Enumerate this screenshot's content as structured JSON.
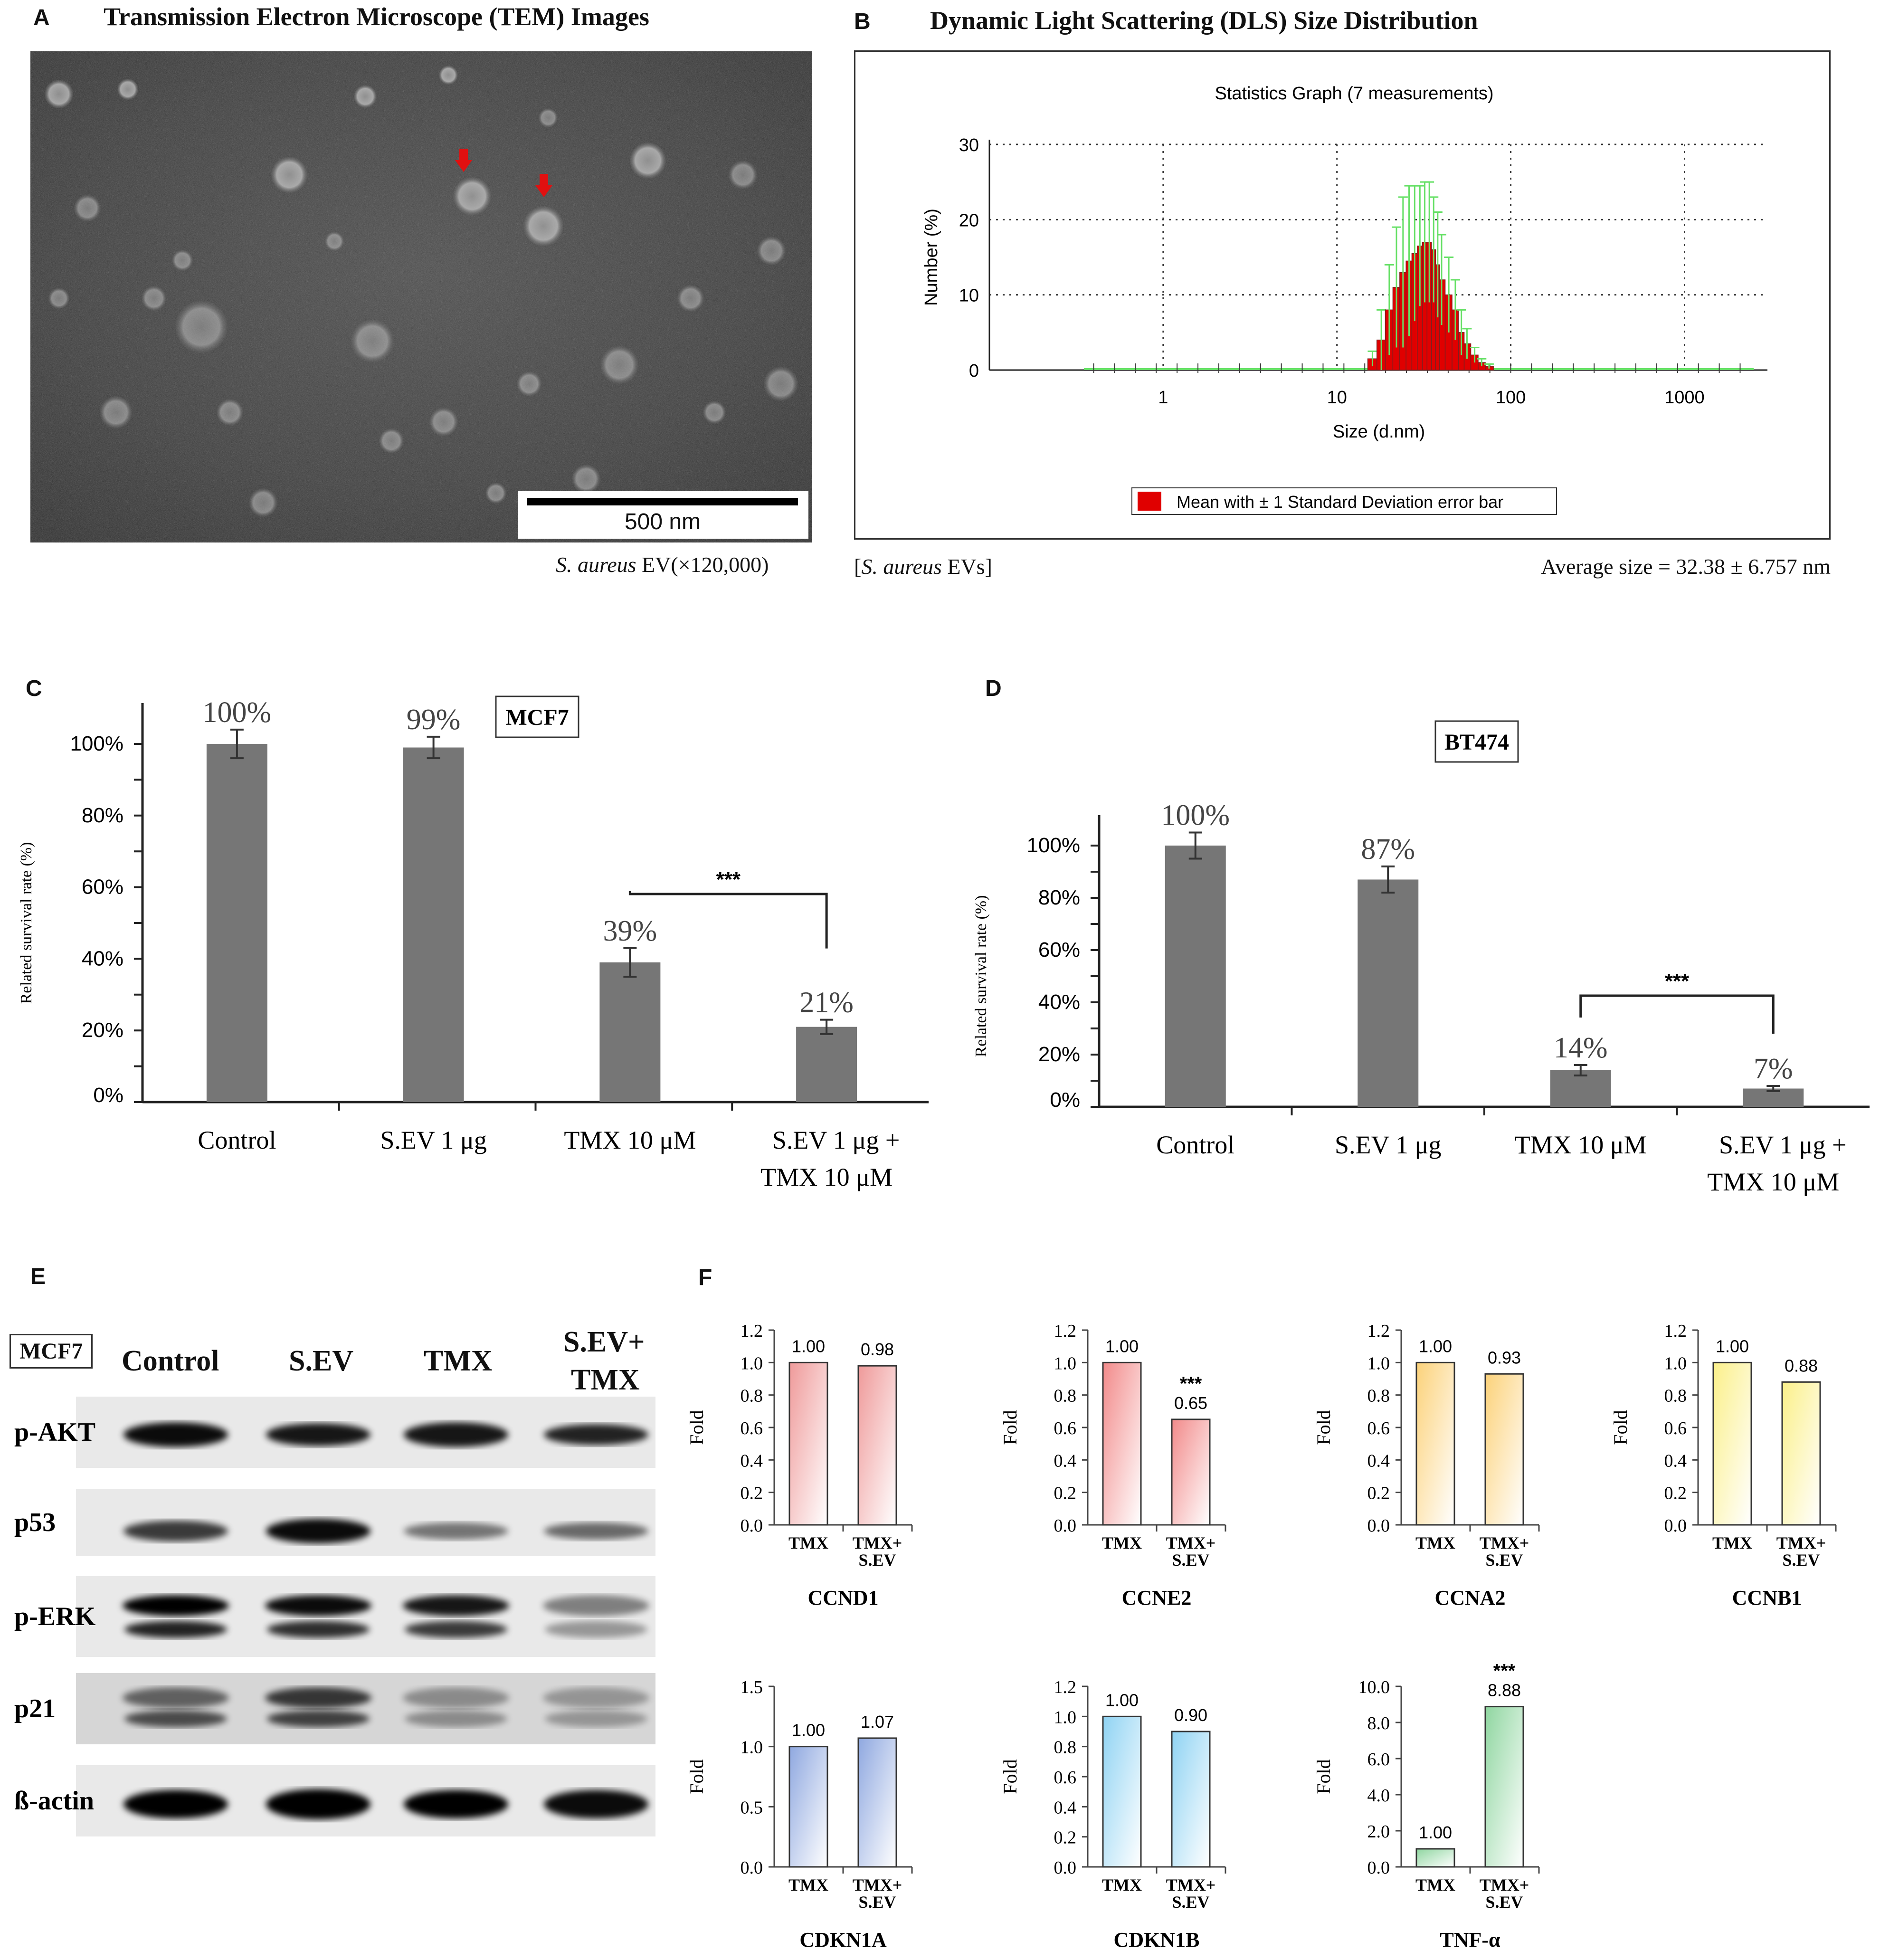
{
  "panels": {
    "a": {
      "letter": "A",
      "title": "Transmission Electron Microscope (TEM) Images",
      "scale_bar": "500 nm",
      "caption_species": "S. aureus",
      "caption_rest": " EV(×120,000)"
    },
    "b": {
      "letter": "B",
      "title": "Dynamic Light Scattering (DLS) Size Distribution",
      "caption_left_species": "S. aureus",
      "caption_left_pre": "[",
      "caption_left_post": " EVs]",
      "caption_right": "Average size = 32.38 ± 6.757 nm"
    },
    "c": {
      "letter": "C"
    },
    "d": {
      "letter": "D"
    },
    "e": {
      "letter": "E"
    },
    "f": {
      "letter": "F"
    }
  },
  "western": {
    "cell_line": "MCF7",
    "columns": [
      "Control",
      "S.EV",
      "TMX",
      "S.EV+",
      "TMX"
    ],
    "rows": [
      "p-AKT",
      "p53",
      "p-ERK",
      "p21",
      "ß-actin"
    ]
  },
  "colors": {
    "bar_gray": "#767676",
    "dls_red": "#e00000",
    "dls_green": "#66e066",
    "ccnd1": "#ef9a9a",
    "ccne2": "#f28a8a",
    "ccna2": "#fcd27a",
    "ccnb1": "#fbf08a",
    "cdkn1a": "#8fa8e0",
    "cdkn1b": "#8fd3f3",
    "tnfa": "#8fd6a0"
  },
  "chart_data": [
    {
      "id": "dls",
      "type": "bar",
      "title": "Statistics Graph (7 measurements)",
      "xlabel": "Size (d.nm)",
      "ylabel": "Number (%)",
      "x_scale": "log",
      "xlim": [
        0.1,
        3000
      ],
      "ylim": [
        0,
        30
      ],
      "x_ticks": [
        "1",
        "10",
        "100",
        "1000",
        "10000"
      ],
      "y_ticks": [
        "0",
        "10",
        "20",
        "30"
      ],
      "grid": true,
      "legend": "Mean with ± 1 Standard Deviation error bar",
      "legend_position": "bottom",
      "x": [
        16,
        18,
        20,
        22,
        24,
        26,
        28,
        30,
        32,
        34,
        36,
        38,
        40,
        44,
        48,
        52,
        56,
        62,
        68,
        75
      ],
      "values": [
        1.5,
        4,
        8,
        11,
        13,
        14.5,
        15.5,
        16.5,
        17,
        17,
        16,
        14,
        12,
        10,
        8,
        5,
        3.5,
        2,
        1,
        0.5
      ],
      "errors": [
        1,
        4,
        6,
        8,
        10,
        10,
        9,
        8,
        8,
        8,
        7,
        7,
        6,
        5,
        4,
        3,
        2,
        1,
        0.5,
        0.3
      ]
    },
    {
      "id": "mcf7",
      "type": "bar",
      "label": "MCF7",
      "ylabel": "Related survival rate (%)",
      "ylim": [
        0,
        100
      ],
      "y_ticks": [
        "0%",
        "20%",
        "40%",
        "60%",
        "80%",
        "100%"
      ],
      "categories": [
        [
          "Control"
        ],
        [
          "S.EV 1 μg"
        ],
        [
          "TMX 10 μM"
        ],
        [
          "S.EV 1 μg +",
          "TMX 10 μM"
        ]
      ],
      "values": [
        100,
        99,
        39,
        21
      ],
      "errors": [
        4,
        3,
        4,
        2
      ],
      "data_labels": [
        "100%",
        "99%",
        "39%",
        "21%"
      ],
      "significance": {
        "between": [
          2,
          3
        ],
        "label": "***"
      }
    },
    {
      "id": "bt474",
      "type": "bar",
      "label": "BT474",
      "ylabel": "Related survival rate (%)",
      "ylim": [
        0,
        100
      ],
      "y_ticks": [
        "0%",
        "20%",
        "40%",
        "60%",
        "80%",
        "100%"
      ],
      "categories": [
        [
          "Control"
        ],
        [
          "S.EV 1 μg"
        ],
        [
          "TMX 10 μM"
        ],
        [
          "S.EV 1 μg +",
          "TMX 10 μM"
        ]
      ],
      "values": [
        100,
        87,
        14,
        7
      ],
      "errors": [
        5,
        5,
        2,
        1
      ],
      "data_labels": [
        "100%",
        "87%",
        "14%",
        "7%"
      ],
      "significance": {
        "between": [
          2,
          3
        ],
        "label": "***"
      }
    },
    {
      "id": "ccnd1",
      "type": "bar",
      "title": "CCND1",
      "ylabel": "Fold",
      "ylim": [
        0,
        1.2
      ],
      "y_ticks": [
        "0.0",
        "0.2",
        "0.4",
        "0.6",
        "0.8",
        "1.0",
        "1.2"
      ],
      "categories": [
        [
          "TMX"
        ],
        [
          "TMX+",
          "S.EV"
        ]
      ],
      "values": [
        1.0,
        0.98
      ],
      "data_labels": [
        "1.00",
        "0.98"
      ],
      "significance": ""
    },
    {
      "id": "ccne2",
      "type": "bar",
      "title": "CCNE2",
      "ylabel": "Fold",
      "ylim": [
        0,
        1.2
      ],
      "y_ticks": [
        "0.0",
        "0.2",
        "0.4",
        "0.6",
        "0.8",
        "1.0",
        "1.2"
      ],
      "categories": [
        [
          "TMX"
        ],
        [
          "TMX+",
          "S.EV"
        ]
      ],
      "values": [
        1.0,
        0.65
      ],
      "data_labels": [
        "1.00",
        "0.65"
      ],
      "significance": "***"
    },
    {
      "id": "ccna2",
      "type": "bar",
      "title": "CCNA2",
      "ylabel": "Fold",
      "ylim": [
        0,
        1.2
      ],
      "y_ticks": [
        "0.0",
        "0.2",
        "0.4",
        "0.6",
        "0.8",
        "1.0",
        "1.2"
      ],
      "categories": [
        [
          "TMX"
        ],
        [
          "TMX+",
          "S.EV"
        ]
      ],
      "values": [
        1.0,
        0.93
      ],
      "data_labels": [
        "1.00",
        "0.93"
      ],
      "significance": ""
    },
    {
      "id": "ccnb1",
      "type": "bar",
      "title": "CCNB1",
      "ylabel": "Fold",
      "ylim": [
        0,
        1.2
      ],
      "y_ticks": [
        "0.0",
        "0.2",
        "0.4",
        "0.6",
        "0.8",
        "1.0",
        "1.2"
      ],
      "categories": [
        [
          "TMX"
        ],
        [
          "TMX+",
          "S.EV"
        ]
      ],
      "values": [
        1.0,
        0.88
      ],
      "data_labels": [
        "1.00",
        "0.88"
      ],
      "significance": ""
    },
    {
      "id": "cdkn1a",
      "type": "bar",
      "title": "CDKN1A",
      "ylabel": "Fold",
      "ylim": [
        0,
        1.5
      ],
      "y_ticks": [
        "0.0",
        "0.5",
        "1.0",
        "1.5"
      ],
      "categories": [
        [
          "TMX"
        ],
        [
          "TMX+",
          "S.EV"
        ]
      ],
      "values": [
        1.0,
        1.07
      ],
      "data_labels": [
        "1.00",
        "1.07"
      ],
      "significance": ""
    },
    {
      "id": "cdkn1b",
      "type": "bar",
      "title": "CDKN1B",
      "ylabel": "Fold",
      "ylim": [
        0,
        1.2
      ],
      "y_ticks": [
        "0.0",
        "0.2",
        "0.4",
        "0.6",
        "0.8",
        "1.0",
        "1.2"
      ],
      "categories": [
        [
          "TMX"
        ],
        [
          "TMX+",
          "S.EV"
        ]
      ],
      "values": [
        1.0,
        0.9
      ],
      "data_labels": [
        "1.00",
        "0.90"
      ],
      "significance": ""
    },
    {
      "id": "tnfa",
      "type": "bar",
      "title": "TNF-α",
      "ylabel": "Fold",
      "ylim": [
        0,
        10
      ],
      "y_ticks": [
        "0.0",
        "2.0",
        "4.0",
        "6.0",
        "8.0",
        "10.0"
      ],
      "categories": [
        [
          "TMX"
        ],
        [
          "TMX+",
          "S.EV"
        ]
      ],
      "values": [
        1.0,
        8.88
      ],
      "data_labels": [
        "1.00",
        "8.88"
      ],
      "significance": "***"
    }
  ]
}
